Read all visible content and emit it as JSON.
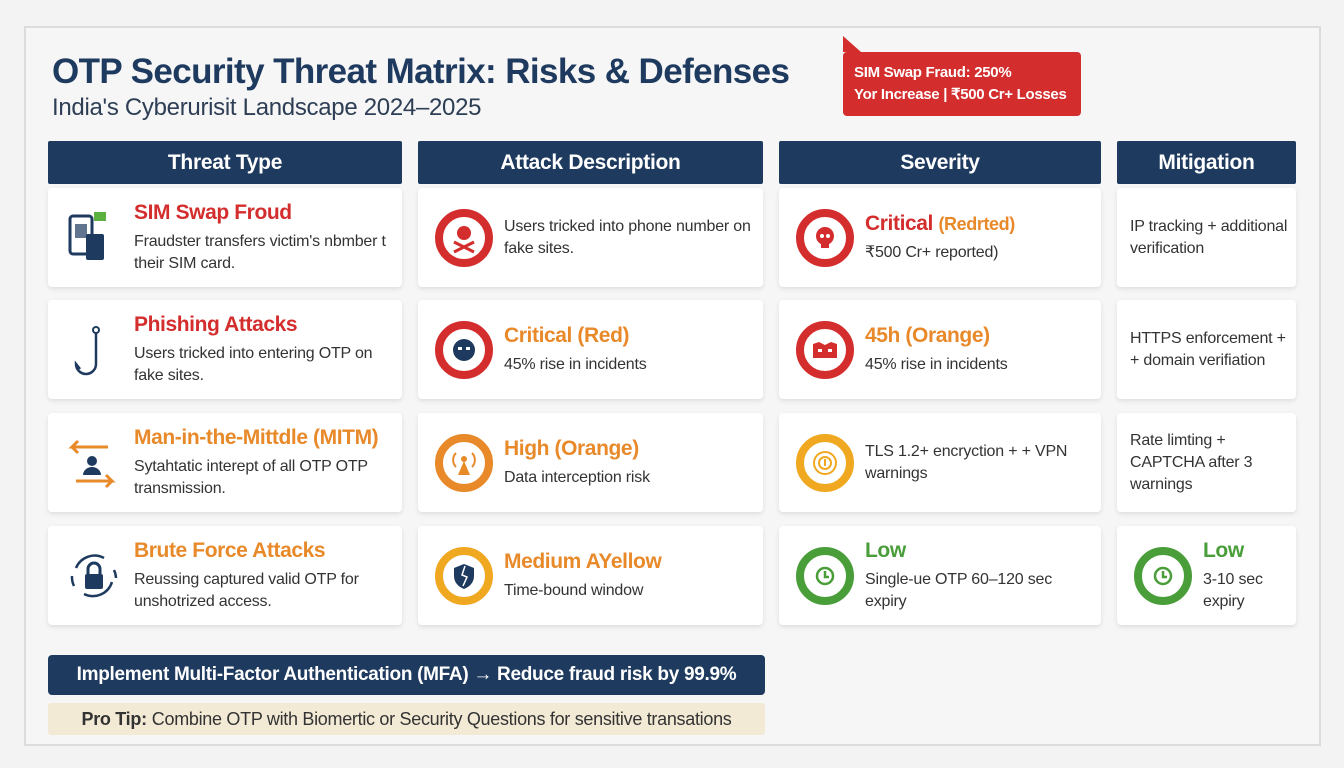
{
  "header": {
    "title": "OTP Security Threat Matrix: Risks & Defenses",
    "subtitle": "India's Cyberurisit Landscape 2024–2025",
    "callout_line1": "SIM Swap Fraud: 250%",
    "callout_line2": "Yor Increase | ₹500 Cr+ Losses"
  },
  "columns": [
    "Threat Type",
    "Attack Description",
    "Severity",
    "Mitigation"
  ],
  "colors": {
    "navy": "#1e3a5f",
    "red": "#d42d2d",
    "orange": "#e8892a",
    "yellow": "#f0a820",
    "green": "#4a9e3a",
    "tip_bg": "#f3ead6"
  },
  "rows": [
    {
      "threat": {
        "title": "SIM Swap Froud",
        "desc": "Fraudster transfers victim's nbmber t their SIM card.",
        "icon": "phone-sim-icon"
      },
      "attack": {
        "title": "",
        "desc": "Users tricked into phone number on fake sites.",
        "icon": "skull-crossbones-icon"
      },
      "severity": {
        "title": "Critical",
        "title_extra": "(Redrted)",
        "desc": "₹500 Cr+ reported)",
        "icon": "skull-icon"
      },
      "mitigation": {
        "title": "",
        "desc": "IP tracking + additional verification"
      }
    },
    {
      "threat": {
        "title": "Phishing Attacks",
        "desc": "Users tricked into entering OTP on fake sites.",
        "icon": "fishing-hook-icon"
      },
      "attack": {
        "title": "Critical (Red)",
        "desc": "45% rise in incidents",
        "icon": "masked-hacker-icon"
      },
      "severity": {
        "title": "45h (Orange)",
        "title_extra": "",
        "desc": "45% rise in incidents",
        "icon": "mask-icon"
      },
      "mitigation": {
        "title": "",
        "desc": "HTTPS enforcement + + domain verifiation"
      }
    },
    {
      "threat": {
        "title": "Man-in-the-Mittdle (MITM)",
        "desc": "Sytahtatic interept of all OTP OTP transmission.",
        "icon": "intercept-arrows-icon"
      },
      "attack": {
        "title": "High (Orange)",
        "desc": "Data interception risk",
        "icon": "signal-tower-icon"
      },
      "severity": {
        "title": "",
        "title_extra": "",
        "desc": "TLS 1.2+ encryction + + VPN warnings",
        "icon": "target-icon"
      },
      "mitigation": {
        "title": "",
        "desc": "Rate limting + CAPTCHA after 3 warnings"
      }
    },
    {
      "threat": {
        "title": "Brute Force Attacks",
        "desc": "Reussing captured valid OTP for unshotrized access.",
        "icon": "lock-cycle-icon"
      },
      "attack": {
        "title": "Medium AYellow",
        "desc": "Time-bound window",
        "icon": "broken-shield-icon"
      },
      "severity": {
        "title": "Low",
        "title_extra": "",
        "desc": "Single-ue OTP 60–120 sec expiry",
        "icon": "clock-icon"
      },
      "mitigation": {
        "title": "Low",
        "desc": "3-10 sec expiry",
        "icon": "clock-icon"
      }
    }
  ],
  "footer": {
    "mfa": "Implement Multi-Factor Authentication (MFA) → Reduce fraud risk by 99.9%",
    "tip_label": "Pro Tip:",
    "tip_text": "Combine OTP with Biomertic or Security Questions for sensitive transations"
  }
}
